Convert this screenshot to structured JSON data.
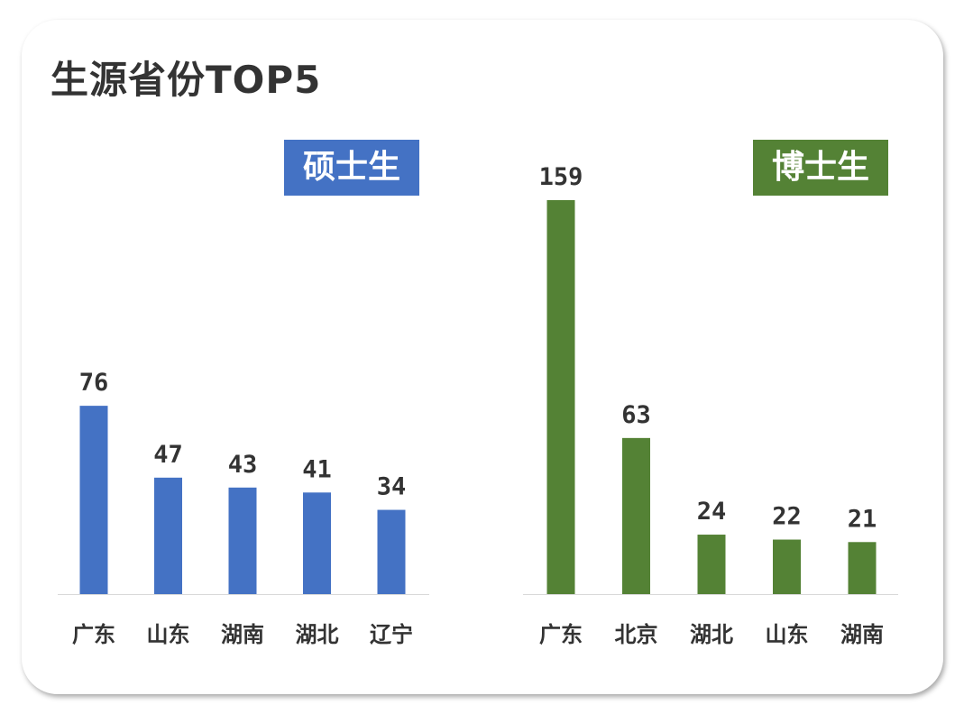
{
  "title": "生源省份TOP5",
  "chart_data": [
    {
      "type": "bar",
      "title": "硕士生",
      "color": "#4472C4",
      "categories": [
        "广东",
        "山东",
        "湖南",
        "湖北",
        "辽宁"
      ],
      "values": [
        76,
        47,
        43,
        41,
        34
      ],
      "ylim": [
        0,
        159
      ]
    },
    {
      "type": "bar",
      "title": "博士生",
      "color": "#548235",
      "categories": [
        "广东",
        "北京",
        "湖北",
        "山东",
        "湖南"
      ],
      "values": [
        159,
        63,
        24,
        22,
        21
      ],
      "ylim": [
        0,
        159
      ]
    }
  ]
}
